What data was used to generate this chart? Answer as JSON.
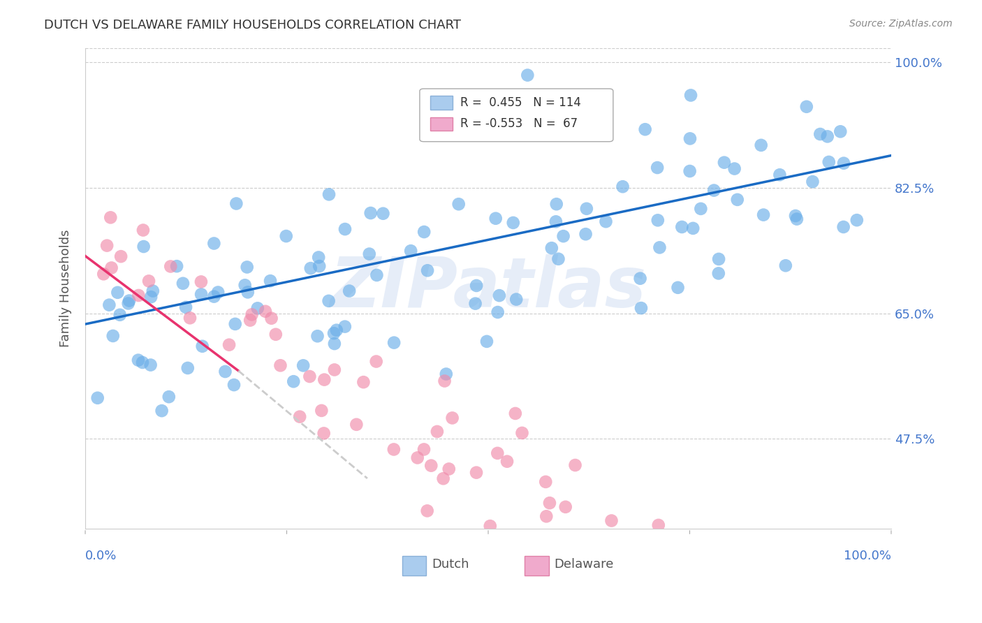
{
  "title": "DUTCH VS DELAWARE FAMILY HOUSEHOLDS CORRELATION CHART",
  "source": "Source: ZipAtlas.com",
  "ylabel": "Family Households",
  "watermark": "ZIPatlas",
  "dutch_R": 0.455,
  "dutch_N": 114,
  "delaware_R": -0.553,
  "delaware_N": 67,
  "xmin": 0.0,
  "xmax": 1.0,
  "ymin": 0.35,
  "ymax": 1.02,
  "yticks": [
    0.475,
    0.65,
    0.825,
    1.0
  ],
  "ytick_labels": [
    "47.5%",
    "65.0%",
    "82.5%",
    "100.0%"
  ],
  "dutch_color": "#6aaee8",
  "delaware_color": "#f08aaa",
  "dutch_line_color": "#1a6bc4",
  "delaware_line_color": "#e8336e",
  "delaware_line_dashed_color": "#cccccc",
  "background_color": "#ffffff",
  "title_color": "#333333",
  "axis_label_color": "#4477cc",
  "grid_color": "#cccccc",
  "legend_box_color_dutch": "#aaccee",
  "legend_box_color_delaware": "#f0aacc"
}
